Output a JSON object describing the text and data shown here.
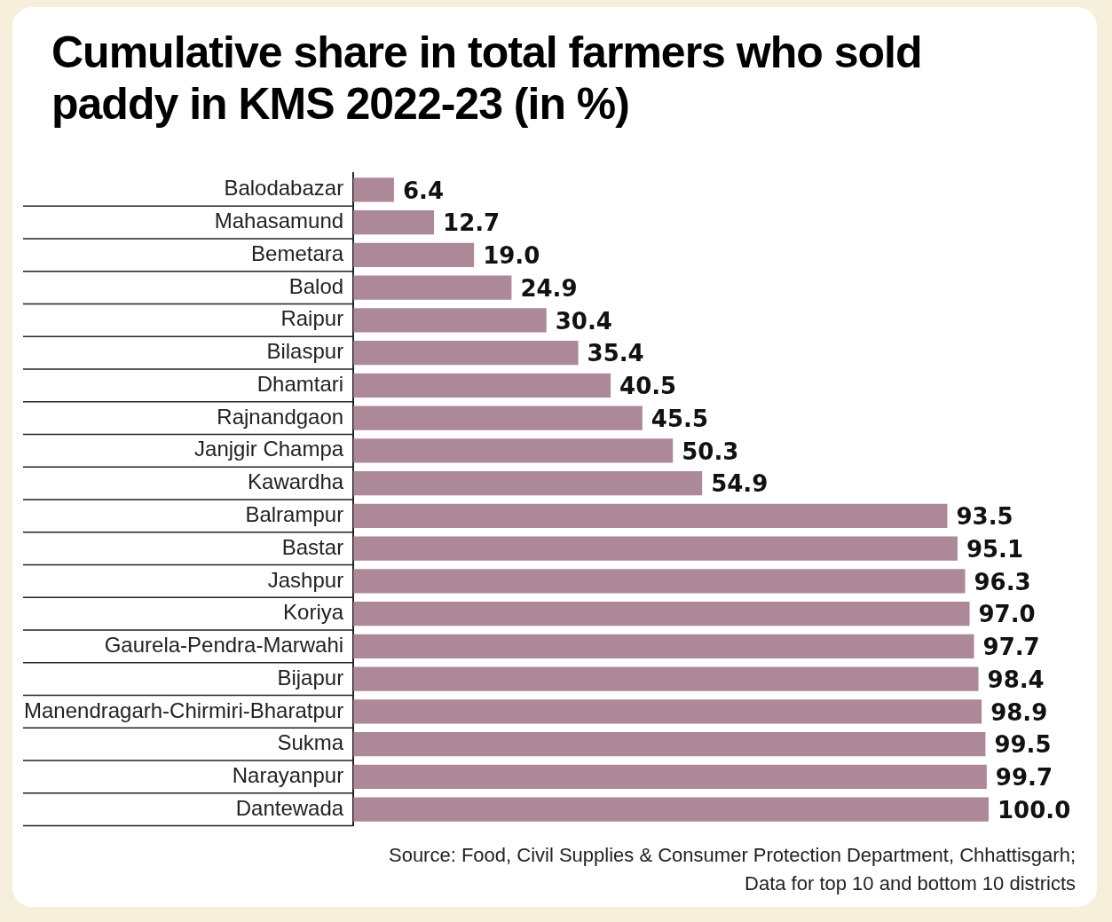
{
  "chart_data": {
    "type": "bar",
    "orientation": "horizontal",
    "title": "Cumulative share in total farmers who sold paddy in KMS 2022-23 (in %)",
    "categories": [
      "Balodabazar",
      "Mahasamund",
      "Bemetara",
      "Balod",
      "Raipur",
      "Bilaspur",
      "Dhamtari",
      "Rajnandgaon",
      "Janjgir Champa",
      "Kawardha",
      "Balrampur",
      "Bastar",
      "Jashpur",
      "Koriya",
      "Gaurela-Pendra-Marwahi",
      "Bijapur",
      "Manendragarh-Chirmiri-Bharatpur",
      "Sukma",
      "Narayanpur",
      "Dantewada"
    ],
    "values": [
      6.4,
      12.7,
      19.0,
      24.9,
      30.4,
      35.4,
      40.5,
      45.5,
      50.3,
      54.9,
      93.5,
      95.1,
      96.3,
      97.0,
      97.7,
      98.4,
      98.9,
      99.5,
      99.7,
      100.0
    ],
    "value_labels": [
      "6.4",
      "12.7",
      "19.0",
      "24.9",
      "30.4",
      "35.4",
      "40.5",
      "45.5",
      "50.3",
      "54.9",
      "93.5",
      "95.1",
      "96.3",
      "97.0",
      "97.7",
      "98.4",
      "98.9",
      "99.5",
      "99.7",
      "100.0"
    ],
    "color": "#ad8898",
    "tick_labels": "y",
    "legend": false,
    "annotations": [
      "Source: Food, Civil Supplies & Consumer Protection Department, Chhattisgarh;",
      "Data for top 10 and bottom 10 districts"
    ]
  }
}
